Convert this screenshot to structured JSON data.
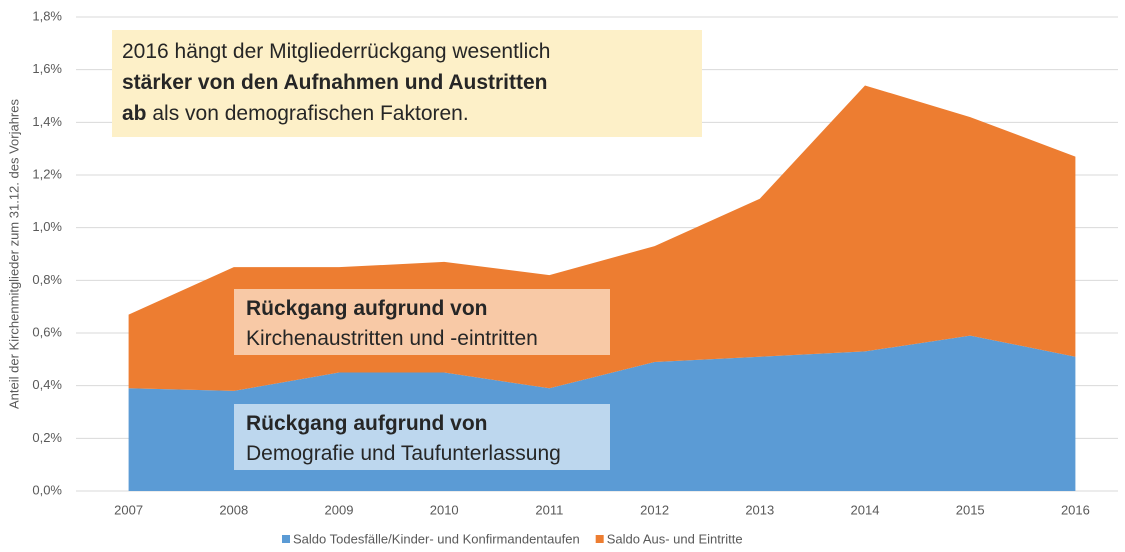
{
  "chart_data": {
    "type": "stacked_area",
    "y_label": "Anteil der Kirchenmitglieder zum 31.12. des Vorjahres",
    "categories": [
      "2007",
      "2008",
      "2009",
      "2010",
      "2011",
      "2012",
      "2013",
      "2014",
      "2015",
      "2016"
    ],
    "series": [
      {
        "name": "Saldo Todesfälle/Kinder- und Konfirmandentaufen",
        "color": "#5b9bd5",
        "values": [
          0.39,
          0.38,
          0.45,
          0.45,
          0.39,
          0.49,
          0.51,
          0.53,
          0.59,
          0.51
        ]
      },
      {
        "name": "Saldo Aus- und Eintritte",
        "color": "#ed7d31",
        "values": [
          0.28,
          0.47,
          0.4,
          0.42,
          0.43,
          0.44,
          0.6,
          1.01,
          0.83,
          0.76
        ]
      }
    ],
    "ylim": [
      0,
      1.8
    ],
    "yticks": [
      {
        "value": 0,
        "label": "0,0%"
      },
      {
        "value": 0.2,
        "label": "0,2%"
      },
      {
        "value": 0.4,
        "label": "0,4%"
      },
      {
        "value": 0.6,
        "label": "0,6%"
      },
      {
        "value": 0.8,
        "label": "0,8%"
      },
      {
        "value": 1.0,
        "label": "1,0%"
      },
      {
        "value": 1.2,
        "label": "1,2%"
      },
      {
        "value": 1.4,
        "label": "1,4%"
      },
      {
        "value": 1.6,
        "label": "1,6%"
      },
      {
        "value": 1.8,
        "label": "1,8%"
      }
    ],
    "grid": true,
    "legend": "bottom",
    "annotations": [
      {
        "lines": [
          [
            {
              "text": "2016 hängt der Mitgliederrückgang wesentlich",
              "bold": false
            }
          ],
          [
            {
              "text": "stärker von den Aufnahmen und Austritten",
              "bold": true
            }
          ],
          [
            {
              "text": "ab",
              "bold": true
            },
            {
              "text": " als von demografischen Faktoren.",
              "bold": false
            }
          ]
        ]
      },
      {
        "lines": [
          [
            {
              "text": "Rückgang aufgrund von",
              "bold": true
            }
          ],
          [
            {
              "text": "Kirchenaustritten und -eintritten",
              "bold": false
            }
          ]
        ]
      },
      {
        "lines": [
          [
            {
              "text": "Rückgang aufgrund von",
              "bold": true
            }
          ],
          [
            {
              "text": "Demografie und Taufunterlassung",
              "bold": false
            }
          ]
        ]
      }
    ]
  }
}
